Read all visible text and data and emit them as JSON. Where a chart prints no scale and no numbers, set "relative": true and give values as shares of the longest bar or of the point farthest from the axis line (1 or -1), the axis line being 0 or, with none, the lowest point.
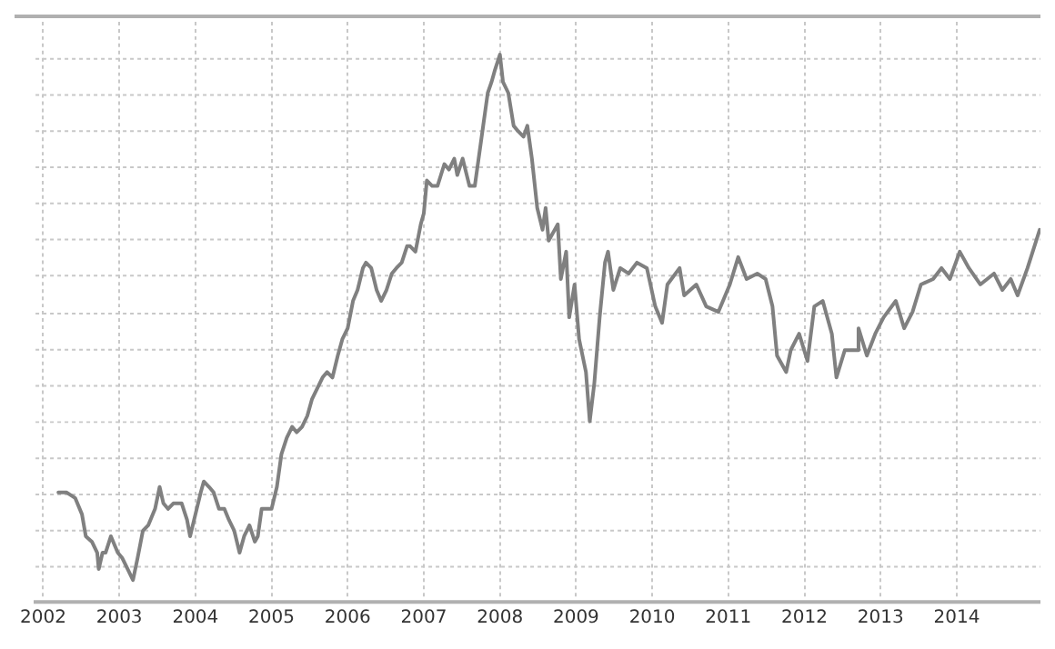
{
  "chart_data": {
    "type": "line",
    "relative": true,
    "grid": true,
    "xlim": [
      2001.9,
      2015.1
    ],
    "xticks": [
      2002,
      2003,
      2004,
      2005,
      2006,
      2007,
      2008,
      2009,
      2010,
      2011,
      2012,
      2013,
      2014
    ],
    "series": [
      {
        "color": "#808080",
        "x": [
          2002.2,
          2002.31,
          2002.42,
          2002.51,
          2002.56,
          2002.64,
          2002.71,
          2002.73,
          2002.78,
          2002.82,
          2002.89,
          2002.98,
          2003.04,
          2003.11,
          2003.18,
          2003.24,
          2003.31,
          2003.38,
          2003.47,
          2003.53,
          2003.58,
          2003.64,
          2003.71,
          2003.76,
          2003.82,
          2003.89,
          2003.93,
          2004.0,
          2004.07,
          2004.11,
          2004.18,
          2004.24,
          2004.31,
          2004.38,
          2004.44,
          2004.51,
          2004.58,
          2004.64,
          2004.71,
          2004.78,
          2004.82,
          2004.87,
          2004.93,
          2005.0,
          2005.07,
          2005.13,
          2005.2,
          2005.27,
          2005.33,
          2005.4,
          2005.47,
          2005.53,
          2005.6,
          2005.67,
          2005.73,
          2005.8,
          2005.87,
          2005.93,
          2006.0,
          2006.07,
          2006.13,
          2006.2,
          2006.24,
          2006.31,
          2006.38,
          2006.44,
          2006.51,
          2006.58,
          2006.64,
          2006.71,
          2006.78,
          2006.82,
          2006.89,
          2006.96,
          2007.0,
          2007.04,
          2007.11,
          2007.18,
          2007.27,
          2007.33,
          2007.4,
          2007.44,
          2007.51,
          2007.6,
          2007.67,
          2007.71,
          2007.78,
          2007.84,
          2007.89,
          2007.93,
          2008.0,
          2008.04,
          2008.11,
          2008.18,
          2008.24,
          2008.31,
          2008.36,
          2008.42,
          2008.49,
          2008.56,
          2008.6,
          2008.64,
          2008.76,
          2008.8,
          2008.87,
          2008.91,
          2008.98,
          2009.04,
          2009.13,
          2009.18,
          2009.24,
          2009.31,
          2009.38,
          2009.42,
          2009.49,
          2009.58,
          2009.69,
          2009.8,
          2009.93,
          2010.04,
          2010.13,
          2010.2,
          2010.36,
          2010.42,
          2010.58,
          2010.71,
          2010.87,
          2011.02,
          2011.13,
          2011.24,
          2011.38,
          2011.49,
          2011.58,
          2011.64,
          2011.76,
          2011.82,
          2011.93,
          2012.04,
          2012.13,
          2012.24,
          2012.36,
          2012.42,
          2012.53,
          2012.69,
          2012.71,
          2012.82,
          2012.93,
          2013.04,
          2013.2,
          2013.31,
          2013.42,
          2013.53,
          2013.69,
          2013.8,
          2013.91,
          2014.04,
          2014.16,
          2014.31,
          2014.49,
          2014.6,
          2014.71,
          2014.8,
          2014.93,
          2015.09
        ],
        "values": [
          0.2,
          0.2,
          0.19,
          0.16,
          0.12,
          0.11,
          0.09,
          0.06,
          0.09,
          0.09,
          0.12,
          0.09,
          0.08,
          0.06,
          0.04,
          0.08,
          0.13,
          0.14,
          0.17,
          0.21,
          0.18,
          0.17,
          0.18,
          0.18,
          0.18,
          0.15,
          0.12,
          0.16,
          0.2,
          0.22,
          0.21,
          0.2,
          0.17,
          0.17,
          0.15,
          0.13,
          0.09,
          0.12,
          0.14,
          0.11,
          0.12,
          0.17,
          0.17,
          0.17,
          0.21,
          0.27,
          0.3,
          0.32,
          0.31,
          0.32,
          0.34,
          0.37,
          0.39,
          0.41,
          0.42,
          0.41,
          0.45,
          0.48,
          0.5,
          0.55,
          0.57,
          0.61,
          0.62,
          0.61,
          0.57,
          0.55,
          0.57,
          0.6,
          0.61,
          0.62,
          0.65,
          0.65,
          0.64,
          0.69,
          0.71,
          0.77,
          0.76,
          0.76,
          0.8,
          0.79,
          0.81,
          0.78,
          0.81,
          0.76,
          0.76,
          0.8,
          0.87,
          0.93,
          0.95,
          0.97,
          1,
          0.95,
          0.93,
          0.87,
          0.86,
          0.85,
          0.87,
          0.81,
          0.72,
          0.68,
          0.72,
          0.66,
          0.69,
          0.59,
          0.64,
          0.52,
          0.58,
          0.48,
          0.42,
          0.33,
          0.4,
          0.52,
          0.62,
          0.64,
          0.57,
          0.61,
          0.6,
          0.62,
          0.61,
          0.54,
          0.51,
          0.58,
          0.61,
          0.56,
          0.58,
          0.54,
          0.53,
          0.58,
          0.63,
          0.59,
          0.6,
          0.59,
          0.54,
          0.45,
          0.42,
          0.46,
          0.49,
          0.44,
          0.54,
          0.55,
          0.49,
          0.41,
          0.46,
          0.46,
          0.5,
          0.45,
          0.49,
          0.52,
          0.55,
          0.5,
          0.53,
          0.58,
          0.59,
          0.61,
          0.59,
          0.64,
          0.61,
          0.58,
          0.6,
          0.57,
          0.59,
          0.56,
          0.61,
          0.68
        ]
      }
    ]
  }
}
